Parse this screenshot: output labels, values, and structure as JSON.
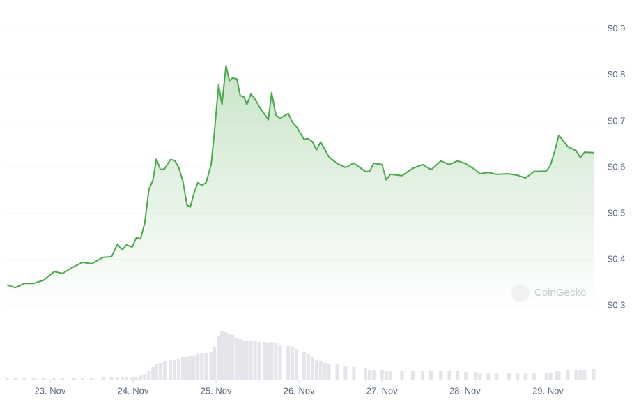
{
  "chart_data": {
    "type": "area",
    "watermark": "CoinGecko",
    "color": "#4aa84a",
    "volume_color": "#e3e5ea",
    "grid": true,
    "xlim": [
      22.48,
      29.55
    ],
    "ylim": [
      0.291,
      0.948
    ],
    "y2lim": [
      0,
      100
    ],
    "yticks": [
      {
        "value": 0.3,
        "label": "$0.3"
      },
      {
        "value": 0.4,
        "label": "$0.4"
      },
      {
        "value": 0.5,
        "label": "$0.5"
      },
      {
        "value": 0.6,
        "label": "$0.6"
      },
      {
        "value": 0.7,
        "label": "$0.7"
      },
      {
        "value": 0.8,
        "label": "$0.8"
      },
      {
        "value": 0.9,
        "label": "$0.9"
      }
    ],
    "xticks": [
      {
        "value": 23,
        "label": "23. Nov"
      },
      {
        "value": 24,
        "label": "24. Nov"
      },
      {
        "value": 25,
        "label": "25. Nov"
      },
      {
        "value": 26,
        "label": "26. Nov"
      },
      {
        "value": 27,
        "label": "27. Nov"
      },
      {
        "value": 28,
        "label": "28. Nov"
      },
      {
        "value": 29,
        "label": "29. Nov"
      }
    ],
    "x": [
      22.48,
      22.58,
      22.69,
      22.8,
      22.92,
      23.05,
      23.15,
      23.29,
      23.39,
      23.5,
      23.64,
      23.74,
      23.81,
      23.87,
      23.92,
      23.99,
      24.04,
      24.09,
      24.14,
      24.19,
      24.24,
      24.28,
      24.33,
      24.38,
      24.45,
      24.5,
      24.55,
      24.6,
      24.65,
      24.69,
      24.73,
      24.78,
      24.83,
      24.88,
      24.94,
      24.98,
      25.03,
      25.07,
      25.12,
      25.16,
      25.2,
      25.25,
      25.29,
      25.34,
      25.37,
      25.42,
      25.47,
      25.52,
      25.59,
      25.63,
      25.67,
      25.72,
      25.77,
      25.87,
      25.92,
      25.97,
      26.06,
      26.11,
      26.16,
      26.21,
      26.26,
      26.31,
      26.36,
      26.46,
      26.56,
      26.66,
      26.8,
      26.85,
      26.9,
      27.0,
      27.05,
      27.1,
      27.24,
      27.37,
      27.49,
      27.59,
      27.71,
      27.81,
      27.91,
      28.01,
      28.13,
      28.18,
      28.28,
      28.38,
      28.53,
      28.63,
      28.73,
      28.83,
      28.98,
      29.03,
      29.1,
      29.13,
      29.24,
      29.34,
      29.39,
      29.44,
      29.55
    ],
    "values": [
      0.345,
      0.339,
      0.348,
      0.348,
      0.355,
      0.374,
      0.37,
      0.385,
      0.394,
      0.391,
      0.405,
      0.406,
      0.433,
      0.421,
      0.432,
      0.427,
      0.448,
      0.445,
      0.479,
      0.552,
      0.573,
      0.618,
      0.595,
      0.597,
      0.617,
      0.615,
      0.6,
      0.57,
      0.518,
      0.514,
      0.542,
      0.567,
      0.561,
      0.567,
      0.606,
      0.676,
      0.779,
      0.736,
      0.821,
      0.788,
      0.794,
      0.792,
      0.756,
      0.752,
      0.736,
      0.759,
      0.748,
      0.732,
      0.714,
      0.703,
      0.762,
      0.714,
      0.706,
      0.717,
      0.698,
      0.688,
      0.661,
      0.662,
      0.656,
      0.638,
      0.655,
      0.639,
      0.623,
      0.608,
      0.6,
      0.609,
      0.591,
      0.591,
      0.609,
      0.606,
      0.573,
      0.585,
      0.582,
      0.598,
      0.606,
      0.595,
      0.614,
      0.606,
      0.614,
      0.608,
      0.594,
      0.586,
      0.589,
      0.585,
      0.586,
      0.583,
      0.577,
      0.591,
      0.592,
      0.605,
      0.648,
      0.67,
      0.645,
      0.636,
      0.621,
      0.633,
      0.632
    ],
    "volume": [
      2,
      2,
      2,
      2,
      2,
      2,
      2,
      2,
      2,
      2,
      3,
      3,
      3,
      3,
      3,
      3,
      4,
      6,
      8,
      12,
      18,
      22,
      24,
      26,
      28,
      28,
      30,
      32,
      32,
      34,
      34,
      36,
      38,
      38,
      40,
      46,
      62,
      70,
      68,
      66,
      64,
      60,
      58,
      56,
      56,
      56,
      56,
      54,
      54,
      52,
      54,
      52,
      50,
      48,
      46,
      44,
      40,
      36,
      32,
      28,
      26,
      24,
      22,
      22,
      20,
      18,
      16,
      14,
      14,
      14,
      13,
      13,
      12,
      12,
      12,
      12,
      12,
      12,
      12,
      11,
      11,
      10,
      10,
      10,
      10,
      10,
      9,
      9,
      9,
      10,
      12,
      13,
      14,
      14,
      14,
      14,
      15
    ]
  }
}
